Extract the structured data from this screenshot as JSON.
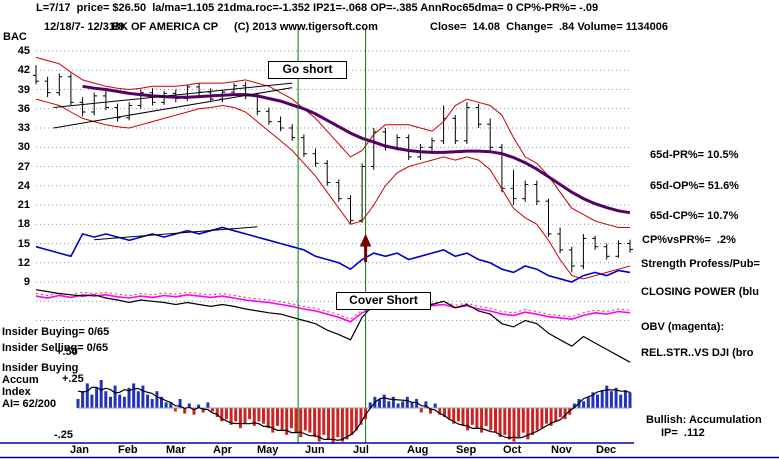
{
  "header": {
    "line1": "L=7/17  price= $26.50  la/ma=1.105 21dma.roc=-1.352 IP21=-.068 OP=-.385 AnnRoc65dma= 0 CP%-PR%= -.09",
    "symbol": "BAC",
    "date_range": "12/18/7- 12/31/8",
    "company": "BK OF AMERICA CP",
    "copyright": "(C) 2013 www.tigersoft.com",
    "close_info": "Close=  14.08  Change=  .84 Volume= 1134006"
  },
  "annotations": {
    "go_short": "Go short",
    "cover_short": "Cover Short"
  },
  "left_labels": {
    "insider_buying": "Insider Buying= 0/65",
    "insider_selling": "Insider Selling= 0/65",
    "panel_title_1": "Insider Buying",
    "panel_title_2": "Accum",
    "panel_title_3": "Index",
    "ai_value": "AI= 62/200",
    "scale_plus50": "+.50",
    "scale_plus25": "+.25",
    "scale_minus25": "-.25"
  },
  "right_labels": [
    "65d-PR%= 10.5%",
    "65d-OP%= 51.6%",
    "65d-CP%= 10.7%",
    "CP%vsPR%=  .2%",
    "Strength Profess/Pub=",
    "CLOSING POWER (blu",
    "OBV (magenta):",
    "REL.STR..VS DJI (bro",
    "Bullish: Accumulation",
    "IP=  .112"
  ],
  "colors": {
    "grid": "#8890c8",
    "candle": "#000000",
    "band": "#cc0000",
    "event_line": "#007700",
    "frame_blue": "#0000bb",
    "arrow": "#7a0000",
    "accum_pos": "#2233bb",
    "accum_neg": "#cc2222"
  },
  "chart_data": {
    "type": "candlestick",
    "title": "BK OF AMERICA CP (BAC) 12/18/7 - 12/31/8",
    "close": 14.08,
    "months": [
      "Jan",
      "Feb",
      "Mar",
      "Apr",
      "May",
      "Jun",
      "Jul",
      "Aug",
      "Sep",
      "Oct",
      "Nov",
      "Dec"
    ],
    "y_axis_ticks": [
      45,
      42,
      39,
      36,
      33,
      30,
      27,
      24,
      21,
      18,
      15,
      12,
      9
    ],
    "gridline_values": [
      45,
      42,
      39,
      36,
      33,
      30,
      27,
      24,
      21,
      18,
      15,
      12,
      9,
      6,
      3
    ],
    "price_ohlc": [
      [
        41.2,
        42.8,
        39.8,
        40.3
      ],
      [
        40.3,
        41.0,
        37.8,
        38.5
      ],
      [
        38.5,
        41.5,
        38.0,
        41.0
      ],
      [
        41.0,
        41.5,
        36.5,
        37.0
      ],
      [
        37.0,
        37.8,
        34.8,
        35.5
      ],
      [
        35.5,
        38.5,
        35.0,
        38.0
      ],
      [
        38.0,
        38.8,
        35.8,
        36.2
      ],
      [
        36.2,
        36.8,
        34.0,
        34.6
      ],
      [
        34.6,
        37.0,
        34.2,
        36.5
      ],
      [
        36.5,
        39.0,
        36.0,
        38.5
      ],
      [
        38.5,
        39.2,
        36.5,
        37.0
      ],
      [
        37.0,
        38.8,
        36.6,
        38.4
      ],
      [
        38.4,
        39.0,
        37.0,
        37.6
      ],
      [
        37.6,
        39.8,
        37.2,
        39.4
      ],
      [
        39.4,
        40.0,
        38.0,
        38.6
      ],
      [
        38.6,
        39.2,
        37.0,
        37.5
      ],
      [
        37.5,
        39.0,
        37.0,
        38.6
      ],
      [
        38.6,
        40.0,
        38.2,
        39.6
      ],
      [
        39.6,
        40.2,
        37.5,
        38.0
      ],
      [
        38.0,
        38.5,
        35.0,
        35.6
      ],
      [
        35.6,
        36.2,
        33.5,
        34.0
      ],
      [
        34.0,
        34.8,
        32.5,
        33.0
      ],
      [
        33.0,
        33.6,
        31.0,
        31.5
      ],
      [
        31.5,
        32.0,
        28.5,
        29.0
      ],
      [
        29.0,
        29.8,
        27.0,
        27.5
      ],
      [
        27.5,
        28.0,
        24.0,
        24.5
      ],
      [
        24.5,
        25.0,
        21.5,
        22.0
      ],
      [
        22.0,
        22.5,
        18.0,
        18.6
      ],
      [
        18.6,
        27.5,
        18.2,
        27.0
      ],
      [
        27.0,
        33.0,
        26.5,
        32.4
      ],
      [
        32.4,
        33.0,
        29.5,
        30.0
      ],
      [
        30.0,
        32.0,
        29.5,
        31.5
      ],
      [
        31.5,
        32.0,
        28.0,
        28.5
      ],
      [
        28.5,
        30.5,
        28.0,
        30.0
      ],
      [
        30.0,
        31.5,
        29.0,
        31.0
      ],
      [
        31.0,
        36.5,
        30.5,
        34.5
      ],
      [
        34.5,
        35.0,
        30.5,
        31.0
      ],
      [
        31.0,
        37.0,
        30.5,
        36.2
      ],
      [
        36.2,
        36.8,
        33.0,
        33.6
      ],
      [
        33.6,
        34.5,
        29.5,
        30.0
      ],
      [
        30.0,
        30.5,
        23.0,
        23.6
      ],
      [
        23.6,
        26.5,
        21.0,
        22.0
      ],
      [
        22.0,
        24.8,
        21.5,
        24.2
      ],
      [
        24.2,
        24.8,
        21.0,
        21.6
      ],
      [
        21.6,
        22.0,
        16.0,
        16.5
      ],
      [
        16.5,
        17.5,
        13.5,
        14.0
      ],
      [
        14.0,
        14.5,
        10.5,
        11.5
      ],
      [
        11.5,
        16.5,
        11.0,
        15.8
      ],
      [
        15.8,
        16.2,
        14.0,
        14.5
      ],
      [
        14.5,
        15.0,
        12.5,
        13.0
      ],
      [
        13.0,
        15.5,
        12.8,
        15.0
      ],
      [
        15.0,
        15.6,
        13.6,
        14.08
      ]
    ],
    "series": [
      {
        "name": "upper_band",
        "color": "#cc0000",
        "width": 1,
        "style": "solid",
        "values": [
          44,
          43.5,
          43,
          41.7,
          40.5,
          40,
          39.5,
          39.2,
          39,
          39.2,
          39.5,
          39.5,
          39.5,
          39.7,
          40,
          40,
          40,
          40.2,
          40.5,
          40,
          39.5,
          38.5,
          37.5,
          36,
          34.5,
          32.5,
          30.5,
          28.5,
          29.5,
          32,
          33.5,
          33.5,
          33.5,
          33,
          32.5,
          34,
          36.5,
          37.5,
          37,
          36.5,
          35,
          31.5,
          28.5,
          27.5,
          25.5,
          23,
          20.5,
          19.5,
          18.5,
          18,
          17.5,
          17.5
        ]
      },
      {
        "name": "lower_band",
        "color": "#cc0000",
        "width": 1,
        "style": "solid",
        "values": [
          37.5,
          37,
          36.5,
          35.5,
          34.5,
          34,
          33.5,
          33.2,
          33,
          33.5,
          34,
          34.5,
          35,
          35.5,
          36,
          36.2,
          36.5,
          36.2,
          35.5,
          34,
          32.5,
          31,
          29.5,
          27.5,
          25.5,
          23,
          20.5,
          18,
          18.5,
          21,
          24,
          26,
          27,
          27.5,
          28,
          28.5,
          28,
          28.5,
          28,
          26.5,
          23.5,
          20.5,
          19,
          18,
          15.5,
          12.5,
          10,
          9.5,
          10,
          10.5,
          11,
          11.5
        ]
      },
      {
        "name": "ma_65d",
        "color": "#550066",
        "width": 3,
        "style": "solid",
        "values": [
          null,
          null,
          null,
          null,
          39.5,
          39.2,
          39.0,
          38.7,
          38.4,
          38.2,
          38.0,
          37.9,
          37.8,
          37.8,
          37.9,
          38.0,
          38.1,
          38.2,
          38.2,
          38.0,
          37.6,
          37.2,
          36.6,
          36.0,
          35.2,
          34.2,
          33.2,
          32.2,
          31.4,
          30.8,
          30.2,
          29.8,
          29.5,
          29.3,
          29.2,
          29.2,
          29.3,
          29.4,
          29.4,
          29.3,
          29.0,
          28.4,
          27.6,
          26.6,
          25.4,
          24.2,
          23.0,
          22.0,
          21.2,
          20.6,
          20.1,
          19.8
        ]
      },
      {
        "name": "closing_power",
        "color": "#0000cc",
        "width": 1.6,
        "style": "solid",
        "values": [
          14.5,
          14.0,
          13.5,
          13.0,
          16.5,
          16.0,
          16.5,
          16.0,
          15.5,
          16.0,
          16.5,
          16.0,
          16.5,
          17.0,
          16.5,
          17.0,
          17.5,
          17.0,
          16.5,
          16.0,
          15.5,
          15.0,
          14.5,
          14.0,
          13.0,
          12.5,
          12.0,
          11.0,
          12.5,
          13.5,
          13.0,
          13.5,
          12.5,
          13.0,
          13.5,
          14.0,
          13.0,
          13.5,
          12.5,
          12.0,
          11.0,
          10.5,
          11.5,
          11.0,
          10.0,
          9.5,
          9.0,
          10.0,
          10.5,
          10.0,
          10.8,
          10.5
        ]
      },
      {
        "name": "obv",
        "color": "#ff00ff",
        "width": 1.6,
        "style": "solid",
        "values": [
          6.8,
          6.5,
          6.9,
          6.6,
          7.0,
          6.8,
          7.0,
          6.7,
          6.5,
          6.8,
          6.6,
          6.9,
          6.7,
          7.0,
          6.8,
          6.6,
          6.8,
          6.5,
          6.2,
          6.0,
          5.8,
          5.5,
          5.2,
          4.8,
          4.5,
          4.0,
          3.5,
          2.8,
          4.2,
          5.0,
          4.8,
          5.2,
          4.8,
          5.0,
          5.3,
          5.5,
          5.0,
          5.3,
          4.8,
          4.5,
          4.0,
          3.8,
          4.3,
          4.0,
          3.6,
          3.4,
          3.2,
          3.8,
          4.2,
          4.0,
          4.4,
          4.2
        ]
      },
      {
        "name": "obv_signal",
        "color": "#ff2222",
        "width": 1,
        "style": "dotted",
        "values": [
          7.2,
          6.9,
          7.3,
          7.0,
          7.4,
          7.2,
          7.4,
          7.1,
          6.9,
          7.2,
          7.0,
          7.3,
          7.1,
          7.4,
          7.2,
          7.0,
          7.2,
          6.9,
          6.6,
          6.4,
          6.2,
          5.9,
          5.6,
          5.2,
          4.9,
          4.4,
          3.9,
          3.2,
          4.6,
          5.4,
          5.2,
          5.6,
          5.2,
          5.4,
          5.7,
          5.9,
          5.4,
          5.7,
          5.2,
          4.9,
          4.4,
          4.2,
          4.7,
          4.4,
          4.0,
          3.8,
          3.6,
          4.2,
          4.6,
          4.4,
          4.8,
          4.6
        ]
      },
      {
        "name": "rel_str_vs_dji",
        "color": "#000000",
        "width": 1.2,
        "style": "solid",
        "values": [
          7.8,
          7.5,
          7.2,
          7.0,
          6.8,
          7.0,
          6.5,
          6.2,
          5.8,
          6.2,
          6.0,
          5.8,
          5.5,
          5.8,
          5.5,
          5.2,
          5.5,
          5.2,
          4.8,
          4.5,
          4.2,
          4.0,
          3.5,
          3.0,
          2.5,
          1.5,
          0.8,
          0.0,
          3.5,
          5.5,
          5.0,
          5.5,
          4.8,
          5.2,
          5.5,
          6.0,
          5.0,
          5.5,
          4.5,
          4.0,
          2.5,
          2.0,
          3.0,
          2.5,
          1.0,
          0.0,
          -1.0,
          0.5,
          -0.5,
          -1.5,
          -2.5,
          -3.5
        ]
      }
    ],
    "trendlines": [
      [
        1.5,
        36.2,
        22,
        40.0
      ],
      [
        1.5,
        33.0,
        22,
        39.3
      ],
      [
        5,
        15.6,
        19,
        17.6
      ]
    ],
    "event_lines": [
      {
        "week": 22.5,
        "label": "Go short"
      },
      {
        "week": 28.3,
        "label": "Cover Short"
      }
    ],
    "accum_index": {
      "scale_labels": [
        "+.50",
        "+.25",
        "-.25"
      ],
      "values": [
        0.08,
        0.15,
        0.22,
        0.12,
        0.18,
        0.25,
        0.15,
        0.1,
        0.2,
        0.12,
        0.1,
        0.18,
        0.22,
        0.15,
        0.2,
        0.12,
        0.08,
        0.15,
        0.1,
        0.05,
        0.05,
        -0.03,
        0.08,
        -0.05,
        0.04,
        -0.06,
        0.03,
        -0.04,
        0.05,
        -0.03,
        -0.08,
        -0.12,
        -0.1,
        -0.15,
        -0.12,
        -0.18,
        -0.14,
        -0.1,
        -0.16,
        -0.12,
        -0.14,
        -0.18,
        -0.22,
        -0.16,
        -0.2,
        -0.24,
        -0.18,
        -0.22,
        -0.26,
        -0.2,
        -0.22,
        -0.26,
        -0.3,
        -0.24,
        -0.28,
        -0.32,
        -0.26,
        -0.3,
        -0.28,
        -0.24,
        -0.2,
        -0.15,
        -0.1,
        0.05,
        0.1,
        0.08,
        0.12,
        0.06,
        0.1,
        0.04,
        0.06,
        0.1,
        0.05,
        0.08,
        -0.04,
        0.06,
        -0.05,
        0.04,
        -0.06,
        -0.08,
        -0.1,
        -0.14,
        -0.12,
        -0.16,
        -0.2,
        -0.15,
        -0.18,
        -0.22,
        -0.16,
        -0.2,
        -0.22,
        -0.26,
        -0.24,
        -0.28,
        -0.3,
        -0.26,
        -0.22,
        -0.28,
        -0.24,
        -0.2,
        -0.18,
        -0.14,
        -0.16,
        -0.12,
        -0.08,
        -0.1,
        -0.06,
        0.04,
        0.08,
        0.06,
        0.1,
        0.14,
        0.12,
        0.16,
        0.2,
        0.15,
        0.18,
        0.12,
        0.16,
        0.14
      ]
    }
  }
}
